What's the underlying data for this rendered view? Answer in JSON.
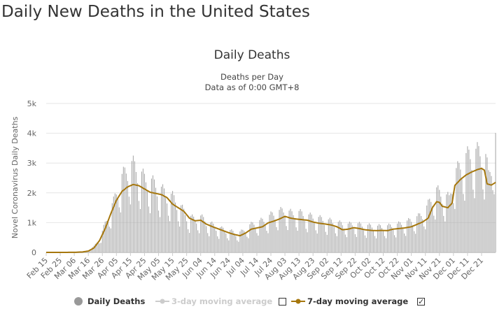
{
  "page": {
    "title": "Daily New Deaths in the United States"
  },
  "chart_data": {
    "type": "bar",
    "title": "Daily Deaths",
    "subtitle": "Deaths per Day",
    "subtitle2": "Data as of 0:00 GMT+8",
    "xlabel": "",
    "ylabel": "Novel Coronavirus Daily Deaths",
    "ylim": [
      0,
      5000
    ],
    "yticks": [
      "0",
      "1k",
      "2k",
      "3k",
      "4k",
      "5k"
    ],
    "grid": true,
    "x_start": "Feb 15",
    "x_end": "Dec 31",
    "x_tick_labels": [
      "Feb 15",
      "Feb 25",
      "Mar 06",
      "Mar 16",
      "Mar 26",
      "Apr 05",
      "Apr 15",
      "Apr 25",
      "May 05",
      "May 15",
      "May 25",
      "Jun 04",
      "Jun 14",
      "Jun 24",
      "Jul 04",
      "Jul 14",
      "Jul 24",
      "Aug 03",
      "Aug 13",
      "Aug 23",
      "Sep 02",
      "Sep 12",
      "Sep 22",
      "Oct 02",
      "Oct 12",
      "Oct 22",
      "Nov 01",
      "Nov 11",
      "Nov 21",
      "Dec 01",
      "Dec 11",
      "Dec 21"
    ],
    "series": [
      {
        "name": "Daily Deaths",
        "color": "#aaaaaa",
        "daily_anchors": [
          [
            "Feb 15",
            0
          ],
          [
            "Feb 28",
            0
          ],
          [
            "Mar 06",
            5
          ],
          [
            "Mar 12",
            20
          ],
          [
            "Mar 16",
            60
          ],
          [
            "Mar 20",
            180
          ],
          [
            "Mar 24",
            420
          ],
          [
            "Mar 26",
            620
          ],
          [
            "Mar 30",
            1100
          ],
          [
            "Apr 03",
            1500
          ],
          [
            "Apr 07",
            2100
          ],
          [
            "Apr 10",
            2300
          ],
          [
            "Apr 14",
            2600
          ],
          [
            "Apr 17",
            2600
          ],
          [
            "Apr 21",
            2400
          ],
          [
            "Apr 25",
            2200
          ],
          [
            "Apr 30",
            2100
          ],
          [
            "May 05",
            1950
          ],
          [
            "May 10",
            1750
          ],
          [
            "May 15",
            1650
          ],
          [
            "May 20",
            1400
          ],
          [
            "May 25",
            1100
          ],
          [
            "May 30",
            1000
          ],
          [
            "Jun 04",
            1050
          ],
          [
            "Jun 09",
            900
          ],
          [
            "Jun 14",
            780
          ],
          [
            "Jun 19",
            700
          ],
          [
            "Jun 24",
            650
          ],
          [
            "Jun 30",
            560
          ],
          [
            "Jul 04",
            630
          ],
          [
            "Jul 09",
            800
          ],
          [
            "Jul 14",
            900
          ],
          [
            "Jul 19",
            950
          ],
          [
            "Jul 24",
            1100
          ],
          [
            "Jul 29",
            1200
          ],
          [
            "Aug 03",
            1250
          ],
          [
            "Aug 08",
            1150
          ],
          [
            "Aug 13",
            1180
          ],
          [
            "Aug 18",
            1100
          ],
          [
            "Aug 23",
            1050
          ],
          [
            "Aug 28",
            1000
          ],
          [
            "Sep 02",
            950
          ],
          [
            "Sep 07",
            900
          ],
          [
            "Sep 12",
            850
          ],
          [
            "Sep 17",
            820
          ],
          [
            "Sep 22",
            850
          ],
          [
            "Sep 27",
            800
          ],
          [
            "Oct 02",
            780
          ],
          [
            "Oct 07",
            760
          ],
          [
            "Oct 12",
            760
          ],
          [
            "Oct 17",
            780
          ],
          [
            "Oct 22",
            820
          ],
          [
            "Oct 27",
            880
          ],
          [
            "Nov 01",
            950
          ],
          [
            "Nov 06",
            1050
          ],
          [
            "Nov 11",
            1250
          ],
          [
            "Nov 14",
            1500
          ],
          [
            "Nov 19",
            1850
          ],
          [
            "Nov 21",
            1750
          ],
          [
            "Nov 24",
            1700
          ],
          [
            "Nov 28",
            1600
          ],
          [
            "Dec 01",
            2300
          ],
          [
            "Dec 05",
            2500
          ],
          [
            "Dec 09",
            2800
          ],
          [
            "Dec 13",
            2900
          ],
          [
            "Dec 17",
            2950
          ],
          [
            "Dec 21",
            3000
          ],
          [
            "Dec 24",
            2800
          ],
          [
            "Dec 26",
            2300
          ],
          [
            "Dec 29",
            2900
          ],
          [
            "Dec 31",
            3400
          ]
        ]
      },
      {
        "name": "3-day moving average",
        "color": "#cccccc",
        "visible": false
      },
      {
        "name": "7-day moving average",
        "color": "#a6770d",
        "anchors": [
          [
            "Feb 15",
            0
          ],
          [
            "Mar 06",
            2
          ],
          [
            "Mar 12",
            15
          ],
          [
            "Mar 16",
            45
          ],
          [
            "Mar 20",
            150
          ],
          [
            "Mar 24",
            400
          ],
          [
            "Mar 28",
            800
          ],
          [
            "Apr 01",
            1300
          ],
          [
            "Apr 05",
            1750
          ],
          [
            "Apr 09",
            2050
          ],
          [
            "Apr 13",
            2200
          ],
          [
            "Apr 17",
            2280
          ],
          [
            "Apr 21",
            2240
          ],
          [
            "Apr 25",
            2130
          ],
          [
            "Apr 29",
            2020
          ],
          [
            "May 03",
            1980
          ],
          [
            "May 07",
            1940
          ],
          [
            "May 11",
            1840
          ],
          [
            "May 15",
            1620
          ],
          [
            "May 19",
            1500
          ],
          [
            "May 23",
            1380
          ],
          [
            "May 27",
            1150
          ],
          [
            "May 31",
            1060
          ],
          [
            "Jun 04",
            1080
          ],
          [
            "Jun 08",
            950
          ],
          [
            "Jun 12",
            870
          ],
          [
            "Jun 16",
            800
          ],
          [
            "Jun 20",
            730
          ],
          [
            "Jun 24",
            660
          ],
          [
            "Jun 28",
            600
          ],
          [
            "Jul 02",
            560
          ],
          [
            "Jul 06",
            650
          ],
          [
            "Jul 10",
            780
          ],
          [
            "Jul 14",
            820
          ],
          [
            "Jul 18",
            860
          ],
          [
            "Jul 22",
            990
          ],
          [
            "Jul 26",
            1050
          ],
          [
            "Jul 30",
            1120
          ],
          [
            "Aug 03",
            1210
          ],
          [
            "Aug 07",
            1150
          ],
          [
            "Aug 11",
            1120
          ],
          [
            "Aug 15",
            1100
          ],
          [
            "Aug 19",
            1080
          ],
          [
            "Aug 23",
            1020
          ],
          [
            "Aug 27",
            980
          ],
          [
            "Sep 01",
            950
          ],
          [
            "Sep 05",
            920
          ],
          [
            "Sep 09",
            860
          ],
          [
            "Sep 13",
            760
          ],
          [
            "Sep 17",
            780
          ],
          [
            "Sep 21",
            830
          ],
          [
            "Sep 25",
            800
          ],
          [
            "Sep 29",
            760
          ],
          [
            "Oct 03",
            740
          ],
          [
            "Oct 07",
            730
          ],
          [
            "Oct 11",
            740
          ],
          [
            "Oct 15",
            730
          ],
          [
            "Oct 19",
            780
          ],
          [
            "Oct 23",
            800
          ],
          [
            "Oct 27",
            820
          ],
          [
            "Nov 01",
            860
          ],
          [
            "Nov 05",
            940
          ],
          [
            "Nov 09",
            1020
          ],
          [
            "Nov 13",
            1150
          ],
          [
            "Nov 16",
            1500
          ],
          [
            "Nov 19",
            1700
          ],
          [
            "Nov 21",
            1680
          ],
          [
            "Nov 23",
            1550
          ],
          [
            "Nov 27",
            1500
          ],
          [
            "Nov 30",
            1650
          ],
          [
            "Dec 02",
            2250
          ],
          [
            "Dec 06",
            2450
          ],
          [
            "Dec 10",
            2600
          ],
          [
            "Dec 14",
            2700
          ],
          [
            "Dec 18",
            2780
          ],
          [
            "Dec 21",
            2820
          ],
          [
            "Dec 23",
            2760
          ],
          [
            "Dec 25",
            2300
          ],
          [
            "Dec 28",
            2260
          ],
          [
            "Dec 31",
            2350
          ]
        ]
      }
    ],
    "legend_position": "bottom-center"
  },
  "legend": {
    "daily": {
      "label": "Daily Deaths",
      "color": "#999999"
    },
    "ma3": {
      "label": "3-day moving average",
      "color": "#cccccc"
    },
    "ma3_check": "",
    "ma7": {
      "label": "7-day moving average",
      "color": "#a6770d"
    },
    "ma7_check": "✓"
  }
}
